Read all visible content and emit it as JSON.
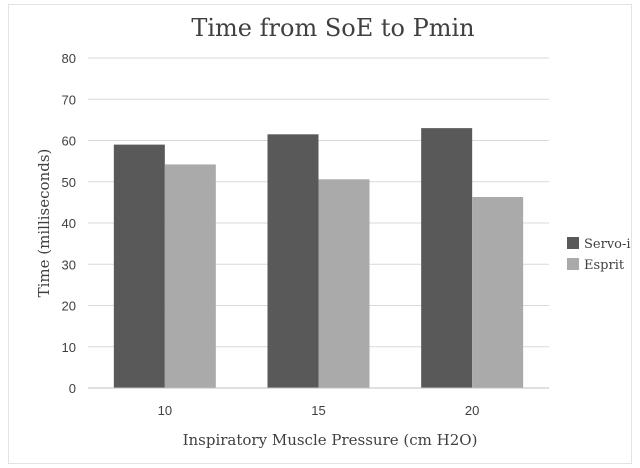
{
  "chart_data": {
    "type": "bar",
    "title": "Time from SoE to Pmin",
    "xlabel": "Inspiratory Muscle Pressure (cm H2O)",
    "ylabel": "Time (milliseconds)",
    "categories": [
      "10",
      "15",
      "20"
    ],
    "series": [
      {
        "name": "Servo-i",
        "values": [
          59,
          61.5,
          63
        ],
        "color": "#595959"
      },
      {
        "name": "Esprit",
        "values": [
          54.2,
          50.6,
          46.3
        ],
        "color": "#aaaaaa"
      }
    ],
    "ylim": [
      0,
      80
    ],
    "yticks": [
      0,
      10,
      20,
      30,
      40,
      50,
      60,
      70,
      80
    ],
    "grid": true,
    "legend": "right",
    "colors": {
      "grid": "#d9d9d9",
      "axis": "#bfbfbf",
      "text": "#404040",
      "border": "#d9d9d9"
    }
  }
}
